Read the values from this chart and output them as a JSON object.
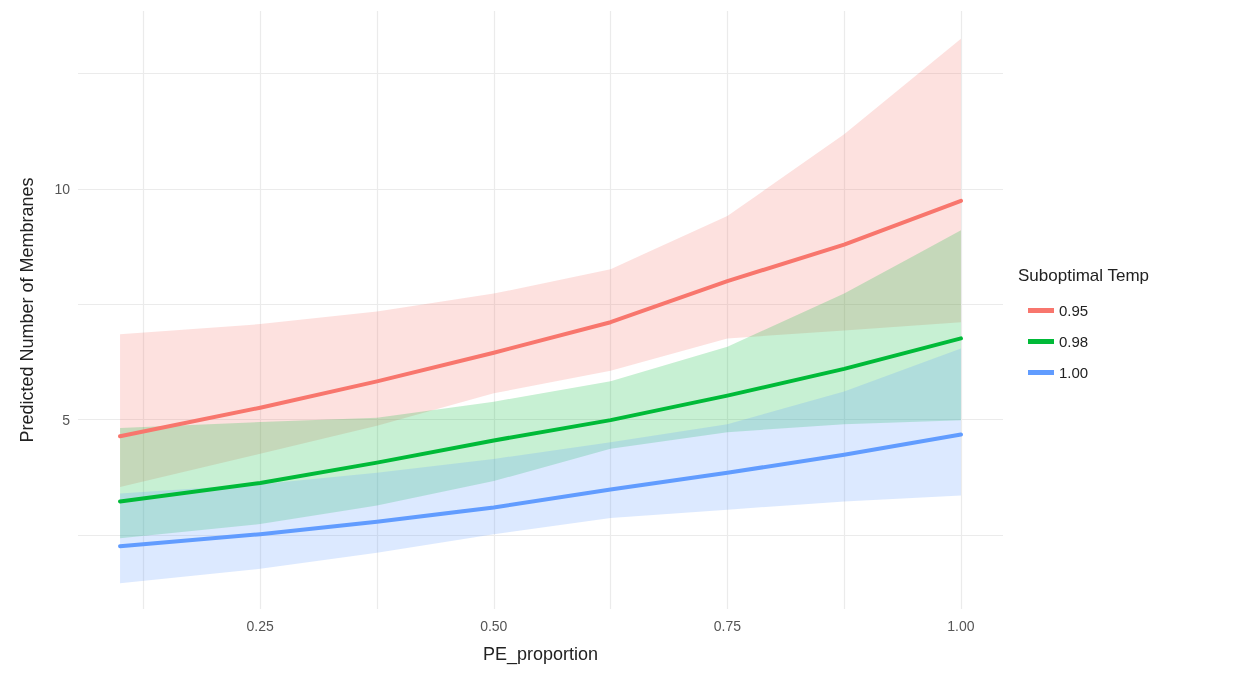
{
  "chart_data": {
    "type": "line",
    "xlabel": "PE_proportion",
    "ylabel": "Predicted Number of Membranes",
    "legend_title": "Suboptimal Temp",
    "legend": "right",
    "grid": true,
    "marker": "none",
    "line_style": "solid",
    "x": [
      0.1,
      0.25,
      0.375,
      0.5,
      0.625,
      0.75,
      0.875,
      1.0
    ],
    "xlim": [
      0.055,
      1.045
    ],
    "ylim": [
      0.9,
      13.85
    ],
    "xticks": [
      {
        "value": 0.125,
        "label": null
      },
      {
        "value": 0.25,
        "label": "0.25"
      },
      {
        "value": 0.375,
        "label": null
      },
      {
        "value": 0.5,
        "label": "0.50"
      },
      {
        "value": 0.625,
        "label": null
      },
      {
        "value": 0.75,
        "label": "0.75"
      },
      {
        "value": 0.875,
        "label": null
      },
      {
        "value": 1.0,
        "label": "1.00"
      }
    ],
    "yticks": [
      {
        "value": 2.5,
        "label": null
      },
      5,
      {
        "value": 7.5,
        "label": null
      },
      10,
      {
        "value": 12.5,
        "label": null
      }
    ],
    "series": [
      {
        "name": "0.95",
        "color": "#f8766d",
        "values": [
          4.64,
          5.26,
          5.83,
          6.45,
          7.11,
          8.0,
          8.79,
          9.74
        ],
        "lower": [
          3.54,
          4.26,
          4.87,
          5.57,
          6.06,
          6.76,
          6.93,
          7.11
        ],
        "upper": [
          6.85,
          7.07,
          7.34,
          7.73,
          8.26,
          9.41,
          11.18,
          13.25
        ]
      },
      {
        "name": "0.98",
        "color": "#00ba38",
        "values": [
          3.23,
          3.63,
          4.07,
          4.55,
          4.99,
          5.52,
          6.1,
          6.76
        ],
        "lower": [
          2.43,
          2.74,
          3.14,
          3.67,
          4.37,
          4.73,
          4.9,
          4.99
        ],
        "upper": [
          4.82,
          4.95,
          5.04,
          5.39,
          5.83,
          6.58,
          7.73,
          9.1
        ]
      },
      {
        "name": "1.00",
        "color": "#619cff",
        "values": [
          2.26,
          2.52,
          2.79,
          3.1,
          3.49,
          3.85,
          4.24,
          4.68
        ],
        "lower": [
          1.46,
          1.77,
          2.12,
          2.52,
          2.87,
          3.05,
          3.23,
          3.36
        ],
        "upper": [
          3.4,
          3.6,
          3.85,
          4.15,
          4.51,
          4.9,
          5.61,
          6.54
        ]
      }
    ]
  }
}
